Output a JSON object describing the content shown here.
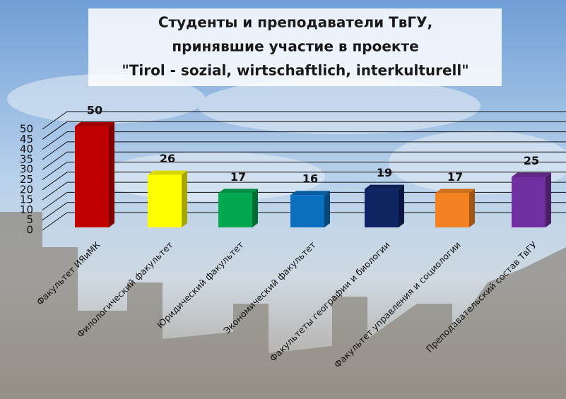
{
  "chart_data": {
    "type": "bar3d",
    "title": [
      "Студенты и преподаватели ТвГУ,",
      "принявшие участие в проекте",
      "\"Tirol - sozial, wirtschaftlich, interkulturell\""
    ],
    "categories": [
      "Факультет ИЯиМК",
      "Филологический факультет",
      "Юридический факультет",
      "Экономический факультет",
      "Факультеты географии и биологии",
      "Факультет управления и социологии",
      "Преподавательский состав ТвГУ"
    ],
    "values": [
      50,
      26,
      17,
      16,
      19,
      17,
      25
    ],
    "colors": [
      "#c00000",
      "#ffff00",
      "#00a84f",
      "#0b6fbf",
      "#0f2463",
      "#f58220",
      "#7030a0"
    ],
    "ylim": [
      0,
      50
    ],
    "yticks": [
      0,
      5,
      10,
      15,
      20,
      25,
      30,
      35,
      40,
      45,
      50
    ],
    "grid": true
  }
}
